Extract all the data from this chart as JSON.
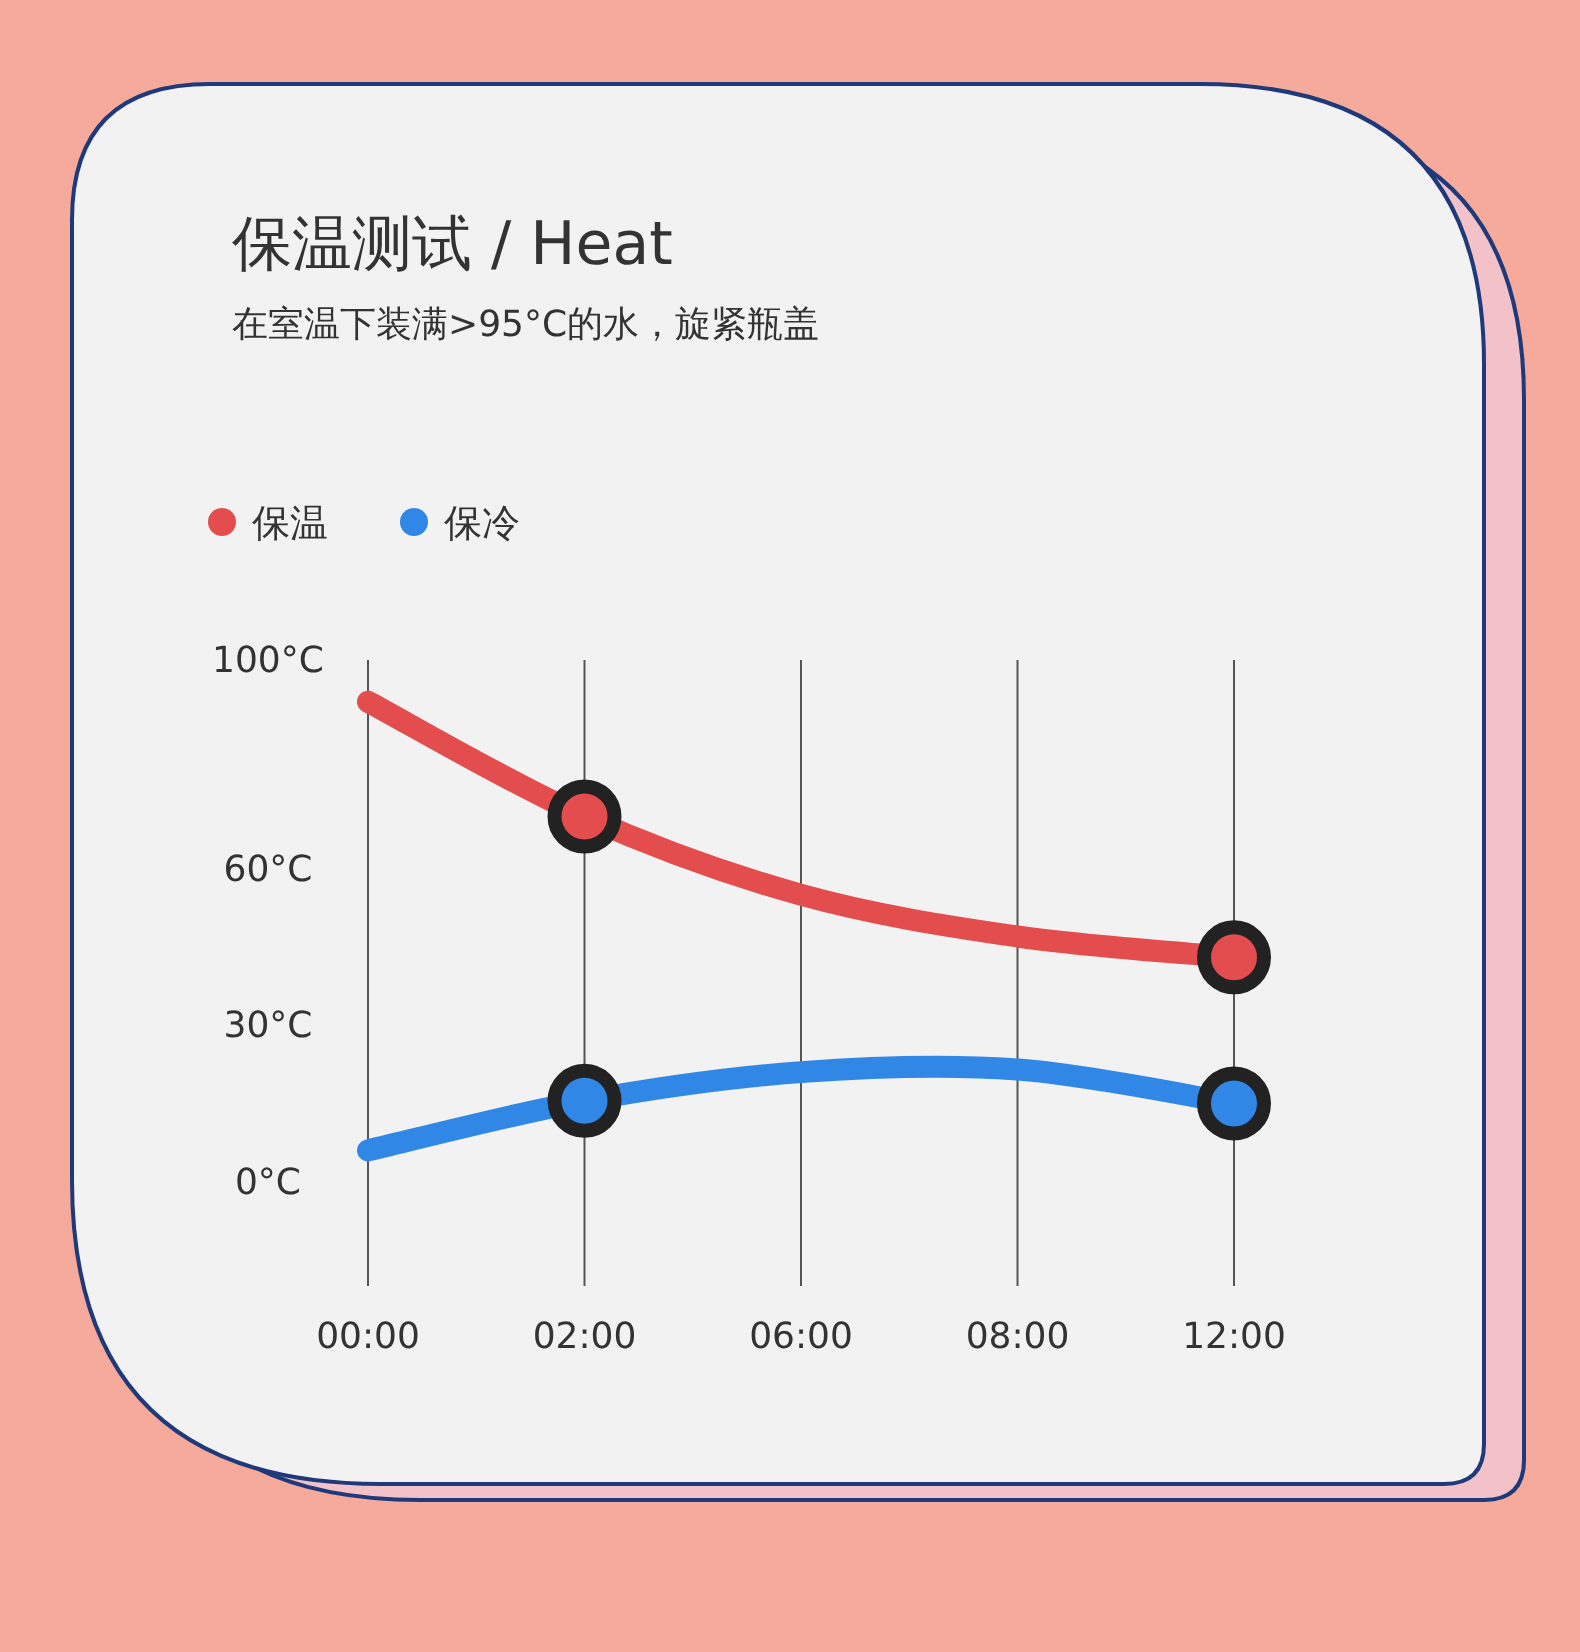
{
  "chart_data": {
    "type": "line",
    "title": "保温测试 / Heat",
    "subtitle": "在室温下装满>95°C的水，旋紧瓶盖",
    "categories": [
      "00:00",
      "02:00",
      "06:00",
      "08:00",
      "12:00"
    ],
    "series": [
      {
        "name": "保温",
        "color": "#e34d4d",
        "values": [
          92,
          70,
          55,
          47,
          43
        ],
        "marker": "none"
      },
      {
        "name": "保冷",
        "color": "#3187e6",
        "values": [
          6,
          15.5,
          21,
          21.5,
          15
        ],
        "marker": "none"
      },
      {
        "type": "scatter",
        "color": "#e34d4d",
        "values": [
          null,
          70,
          null,
          null,
          43
        ],
        "marker": "circle"
      },
      {
        "type": "scatter",
        "color": "#3187e6",
        "values": [
          null,
          15.5,
          null,
          null,
          15
        ],
        "marker": "circle"
      }
    ],
    "ylim": [
      -20,
      100
    ],
    "yticks": [
      {
        "value": 0,
        "label": "0°C"
      },
      {
        "value": 30,
        "label": "30°C"
      },
      {
        "value": 60,
        "label": "60°C"
      },
      {
        "value": 100,
        "label": "100°C"
      }
    ],
    "grid": "x",
    "legend": "top left"
  }
}
